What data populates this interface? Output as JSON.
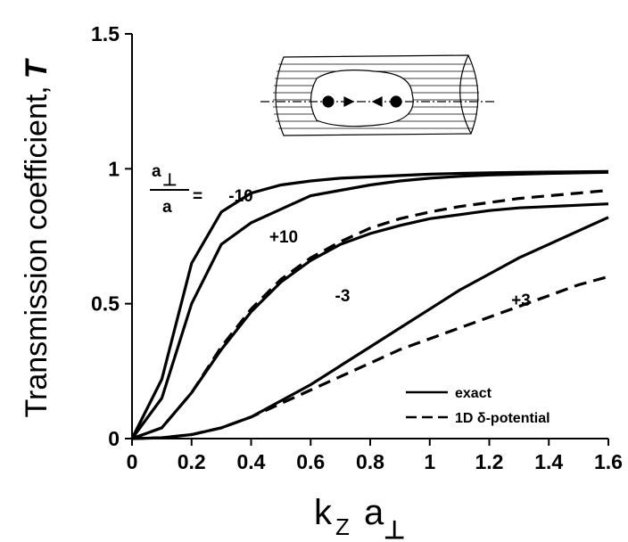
{
  "chart_data": {
    "type": "line",
    "y_label": "Transmission   coefficient,",
    "y_label_symbol": "T",
    "x_label": {
      "k": "k",
      "k_sub": "Z",
      "a": "a",
      "a_sub": "⊥"
    },
    "ratio_label": {
      "numerator": "a",
      "numerator_sub": "⊥",
      "denominator": "a",
      "equals": "="
    },
    "x": [
      0,
      0.1,
      0.2,
      0.3,
      0.4,
      0.5,
      0.6,
      0.7,
      0.8,
      0.9,
      1.0,
      1.1,
      1.2,
      1.3,
      1.4,
      1.5,
      1.6
    ],
    "series": [
      {
        "label": "-10",
        "style": "solid",
        "color": "#000000",
        "values": [
          0,
          0.22,
          0.65,
          0.84,
          0.91,
          0.94,
          0.955,
          0.965,
          0.97,
          0.975,
          0.98,
          0.983,
          0.985,
          0.987,
          0.988,
          0.989,
          0.99
        ]
      },
      {
        "label": "+10",
        "style": "solid",
        "color": "#000000",
        "values": [
          0,
          0.15,
          0.5,
          0.72,
          0.8,
          0.85,
          0.9,
          0.92,
          0.94,
          0.955,
          0.965,
          0.972,
          0.977,
          0.98,
          0.983,
          0.985,
          0.987
        ]
      },
      {
        "label": "-3",
        "style": "solid",
        "color": "#000000",
        "values": [
          0,
          0.04,
          0.17,
          0.33,
          0.47,
          0.58,
          0.66,
          0.72,
          0.76,
          0.79,
          0.815,
          0.83,
          0.845,
          0.855,
          0.86,
          0.865,
          0.87
        ]
      },
      {
        "label": "+3",
        "style": "solid",
        "color": "#000000",
        "values": [
          0,
          0.003,
          0.015,
          0.04,
          0.08,
          0.14,
          0.2,
          0.27,
          0.34,
          0.41,
          0.48,
          0.55,
          0.61,
          0.67,
          0.72,
          0.77,
          0.82
        ]
      },
      {
        "style": "dashed",
        "color": "#000000",
        "values": [
          0,
          0.04,
          0.17,
          0.34,
          0.48,
          0.59,
          0.67,
          0.73,
          0.78,
          0.815,
          0.84,
          0.86,
          0.875,
          0.89,
          0.9,
          0.91,
          0.92
        ]
      },
      {
        "style": "dashed",
        "color": "#000000",
        "values": [
          0,
          0.003,
          0.015,
          0.04,
          0.08,
          0.13,
          0.18,
          0.23,
          0.28,
          0.33,
          0.37,
          0.41,
          0.45,
          0.49,
          0.53,
          0.57,
          0.6
        ]
      }
    ],
    "legend": [
      {
        "label": "exact",
        "style": "solid"
      },
      {
        "label": "1D δ-potential",
        "style": "dashed"
      }
    ],
    "xlim": [
      0,
      1.6
    ],
    "xticks": [
      0,
      0.2,
      0.4,
      0.6,
      0.8,
      1,
      1.2,
      1.4,
      1.6
    ],
    "ylim": [
      0,
      1.5
    ],
    "yticks": [
      0,
      0.5,
      1,
      1.5
    ]
  }
}
